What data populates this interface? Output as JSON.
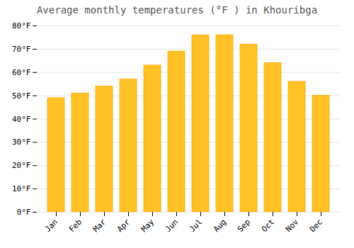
{
  "chart_data": {
    "type": "bar",
    "title": "Average monthly temperatures (°F ) in Khouribga",
    "categories": [
      "Jan",
      "Feb",
      "Mar",
      "Apr",
      "May",
      "Jun",
      "Jul",
      "Aug",
      "Sep",
      "Oct",
      "Nov",
      "Dec"
    ],
    "values": [
      49,
      51,
      54,
      57,
      63,
      69,
      76,
      76,
      72,
      64,
      56,
      50
    ],
    "color": "#FFC125",
    "ylim": [
      0,
      80
    ],
    "yticks": [
      {
        "value": 0,
        "label": "0°F"
      },
      {
        "value": 10,
        "label": "10°F"
      },
      {
        "value": 20,
        "label": "20°F"
      },
      {
        "value": 30,
        "label": "30°F"
      },
      {
        "value": 40,
        "label": "40°F"
      },
      {
        "value": 50,
        "label": "50°F"
      },
      {
        "value": 60,
        "label": "60°F"
      },
      {
        "value": 70,
        "label": "70°F"
      },
      {
        "value": 80,
        "label": "80°F"
      }
    ],
    "grid": true
  }
}
